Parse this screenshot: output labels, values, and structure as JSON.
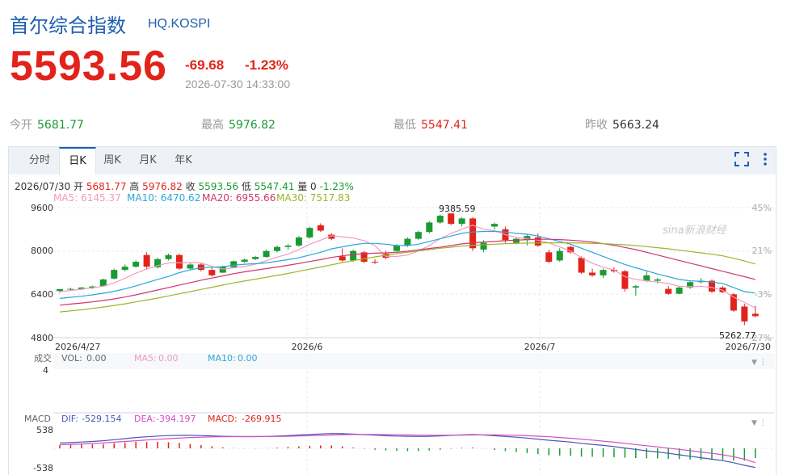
{
  "header": {
    "title": "首尔综合指数",
    "code": "HQ.KOSPI",
    "price": "5593.56",
    "change": "-69.68",
    "change_pct": "-1.23%",
    "datetime": "2026-07-30 14:33:00"
  },
  "stats": {
    "open": {
      "label": "今开",
      "value": "5681.77"
    },
    "high": {
      "label": "最高",
      "value": "5976.82"
    },
    "low": {
      "label": "最低",
      "value": "5547.41"
    },
    "prev_close": {
      "label": "昨收",
      "value": "5663.24"
    }
  },
  "tabs": [
    "分时",
    "日K",
    "周K",
    "月K",
    "年K"
  ],
  "toolbar_icons": [
    "fullscreen-icon",
    "more-vertical-icon"
  ],
  "ohlc_line": {
    "date": "2026/07/30",
    "open_label": "开",
    "open": "5681.77",
    "high_label": "高",
    "high": "5976.82",
    "close_label": "收",
    "close": "5593.56",
    "low_label": "低",
    "low": "5547.41",
    "vol_label": "量",
    "vol": "0",
    "pct": "-1.23%"
  },
  "ma_legend": [
    {
      "label": "MA5:",
      "value": "6145.37",
      "color": "#f29ac0"
    },
    {
      "label": "MA10:",
      "value": "6470.62",
      "color": "#2aa7d9"
    },
    {
      "label": "MA20:",
      "value": "6955.66",
      "color": "#d0356e"
    },
    {
      "label": "MA30:",
      "value": "7517.83",
      "color": "#9bb52b"
    }
  ],
  "volume_legend": {
    "title": "成交",
    "vol_label": "VOL:",
    "vol": "0.00",
    "ma5_label": "MA5:",
    "ma5": "0.00",
    "ma10_label": "MA10:",
    "ma10": "0.00",
    "ytick": "4"
  },
  "macd_legend": {
    "title": "MACD",
    "dif_label": "DIF:",
    "dif": "-529.154",
    "dea_label": "DEA:",
    "dea": "-394.197",
    "macd_label": "MACD:",
    "macd": "-269.915",
    "yticks": [
      "538",
      "-538"
    ]
  },
  "watermark": "sina新浪财经",
  "colors": {
    "up": "#e2231a",
    "down": "#1a9a33",
    "ma5": "#f29ac0",
    "ma10": "#2aa7d9",
    "ma20": "#d0356e",
    "ma30": "#9bb52b",
    "dif": "#4a57b5",
    "dea": "#d44fc0"
  },
  "chart_data": {
    "type": "candlestick",
    "title": "日K",
    "x_tick_labels": [
      "2026/4/27",
      "2026/6",
      "2026/7",
      "2026/7/30"
    ],
    "y_tick_labels_left": [
      "9600",
      "8000",
      "6400",
      "4800"
    ],
    "y_tick_labels_right": [
      "45%",
      "21%",
      "-3%",
      "-27%"
    ],
    "ylim": [
      4800,
      9600
    ],
    "annotations": {
      "max": "9385.59",
      "min": "5262.77"
    },
    "candles": [
      {
        "o": 6520,
        "h": 6600,
        "l": 6460,
        "c": 6590
      },
      {
        "o": 6580,
        "h": 6640,
        "l": 6540,
        "c": 6600
      },
      {
        "o": 6590,
        "h": 6670,
        "l": 6560,
        "c": 6650
      },
      {
        "o": 6640,
        "h": 6720,
        "l": 6600,
        "c": 6690
      },
      {
        "o": 6700,
        "h": 6980,
        "l": 6680,
        "c": 6950
      },
      {
        "o": 6980,
        "h": 7350,
        "l": 6950,
        "c": 7300
      },
      {
        "o": 7300,
        "h": 7500,
        "l": 7250,
        "c": 7420
      },
      {
        "o": 7420,
        "h": 7650,
        "l": 7380,
        "c": 7600
      },
      {
        "o": 7850,
        "h": 7950,
        "l": 7320,
        "c": 7420
      },
      {
        "o": 7400,
        "h": 7750,
        "l": 7350,
        "c": 7700
      },
      {
        "o": 7700,
        "h": 7900,
        "l": 7650,
        "c": 7850
      },
      {
        "o": 7850,
        "h": 7900,
        "l": 7300,
        "c": 7350
      },
      {
        "o": 7350,
        "h": 7550,
        "l": 7300,
        "c": 7500
      },
      {
        "o": 7500,
        "h": 7550,
        "l": 7250,
        "c": 7300
      },
      {
        "o": 7300,
        "h": 7380,
        "l": 7060,
        "c": 7100
      },
      {
        "o": 7200,
        "h": 7450,
        "l": 7180,
        "c": 7420
      },
      {
        "o": 7400,
        "h": 7650,
        "l": 7380,
        "c": 7620
      },
      {
        "o": 7600,
        "h": 7720,
        "l": 7560,
        "c": 7680
      },
      {
        "o": 7700,
        "h": 7820,
        "l": 7660,
        "c": 7780
      },
      {
        "o": 7780,
        "h": 8050,
        "l": 7750,
        "c": 8000
      },
      {
        "o": 8000,
        "h": 8200,
        "l": 7950,
        "c": 8150
      },
      {
        "o": 8150,
        "h": 8250,
        "l": 8050,
        "c": 8200
      },
      {
        "o": 8200,
        "h": 8550,
        "l": 8150,
        "c": 8500
      },
      {
        "o": 8500,
        "h": 8900,
        "l": 8450,
        "c": 8850
      },
      {
        "o": 8950,
        "h": 9020,
        "l": 8700,
        "c": 8750
      },
      {
        "o": 8600,
        "h": 8650,
        "l": 8400,
        "c": 8450
      },
      {
        "o": 7800,
        "h": 8100,
        "l": 7600,
        "c": 7650
      },
      {
        "o": 7650,
        "h": 8050,
        "l": 7600,
        "c": 8000
      },
      {
        "o": 7950,
        "h": 8000,
        "l": 7550,
        "c": 7600
      },
      {
        "o": 7600,
        "h": 7700,
        "l": 7520,
        "c": 7580
      },
      {
        "o": 7900,
        "h": 8000,
        "l": 7700,
        "c": 7750
      },
      {
        "o": 8000,
        "h": 8250,
        "l": 7950,
        "c": 8200
      },
      {
        "o": 8200,
        "h": 8500,
        "l": 8150,
        "c": 8450
      },
      {
        "o": 8450,
        "h": 8750,
        "l": 8400,
        "c": 8700
      },
      {
        "o": 8700,
        "h": 9100,
        "l": 8650,
        "c": 9050
      },
      {
        "o": 9050,
        "h": 9350,
        "l": 9000,
        "c": 9300
      },
      {
        "o": 9385,
        "h": 9386,
        "l": 8950,
        "c": 9000
      },
      {
        "o": 9000,
        "h": 9250,
        "l": 8900,
        "c": 9200
      },
      {
        "o": 9200,
        "h": 9250,
        "l": 8000,
        "c": 8100
      },
      {
        "o": 8050,
        "h": 8400,
        "l": 7950,
        "c": 8300
      },
      {
        "o": 8900,
        "h": 9050,
        "l": 8800,
        "c": 9000
      },
      {
        "o": 8800,
        "h": 8900,
        "l": 8300,
        "c": 8400
      },
      {
        "o": 8300,
        "h": 8500,
        "l": 8250,
        "c": 8450
      },
      {
        "o": 8400,
        "h": 8600,
        "l": 8200,
        "c": 8550
      },
      {
        "o": 8500,
        "h": 8650,
        "l": 8150,
        "c": 8200
      },
      {
        "o": 7950,
        "h": 8050,
        "l": 7550,
        "c": 7600
      },
      {
        "o": 7650,
        "h": 8100,
        "l": 7600,
        "c": 8000
      },
      {
        "o": 8150,
        "h": 8200,
        "l": 7900,
        "c": 7950
      },
      {
        "o": 7750,
        "h": 7800,
        "l": 7150,
        "c": 7200
      },
      {
        "o": 7200,
        "h": 7350,
        "l": 7050,
        "c": 7100
      },
      {
        "o": 7100,
        "h": 7350,
        "l": 7000,
        "c": 7300
      },
      {
        "o": 7300,
        "h": 7400,
        "l": 7200,
        "c": 7250
      },
      {
        "o": 7250,
        "h": 7300,
        "l": 6500,
        "c": 6600
      },
      {
        "o": 6650,
        "h": 6750,
        "l": 6350,
        "c": 6700
      },
      {
        "o": 6900,
        "h": 7250,
        "l": 6850,
        "c": 7100
      },
      {
        "o": 6900,
        "h": 7000,
        "l": 6800,
        "c": 6950
      },
      {
        "o": 6600,
        "h": 6700,
        "l": 6380,
        "c": 6420
      },
      {
        "o": 6420,
        "h": 6700,
        "l": 6400,
        "c": 6650
      },
      {
        "o": 6650,
        "h": 6900,
        "l": 6600,
        "c": 6850
      },
      {
        "o": 6850,
        "h": 7000,
        "l": 6800,
        "c": 6900
      },
      {
        "o": 6900,
        "h": 6950,
        "l": 6450,
        "c": 6500
      },
      {
        "o": 6650,
        "h": 6700,
        "l": 6450,
        "c": 6480
      },
      {
        "o": 6400,
        "h": 6450,
        "l": 5750,
        "c": 5800
      },
      {
        "o": 5950,
        "h": 6050,
        "l": 5263,
        "c": 5400
      },
      {
        "o": 5682,
        "h": 5977,
        "l": 5547,
        "c": 5594
      }
    ],
    "ma5": [
      6500,
      6540,
      6590,
      6640,
      6700,
      6820,
      6990,
      7180,
      7330,
      7460,
      7560,
      7560,
      7570,
      7560,
      7430,
      7330,
      7380,
      7420,
      7510,
      7640,
      7770,
      7890,
      8050,
      8250,
      8400,
      8560,
      8520,
      8480,
      8380,
      8200,
      7800,
      7800,
      7850,
      8000,
      8200,
      8450,
      8650,
      8800,
      8950,
      8800,
      8750,
      8600,
      8500,
      8450,
      8400,
      8300,
      8150,
      8000,
      7750,
      7550,
      7400,
      7300,
      7050,
      6950,
      6900,
      6850,
      6800,
      6700,
      6680,
      6700,
      6650,
      6550,
      6300,
      6100,
      5900
    ],
    "ma10": [
      6250,
      6290,
      6330,
      6380,
      6440,
      6510,
      6600,
      6710,
      6830,
      6950,
      7060,
      7200,
      7300,
      7380,
      7400,
      7420,
      7470,
      7510,
      7530,
      7560,
      7620,
      7680,
      7750,
      7850,
      7950,
      8080,
      8150,
      8230,
      8280,
      8280,
      8250,
      8200,
      8200,
      8250,
      8350,
      8450,
      8550,
      8650,
      8700,
      8720,
      8720,
      8700,
      8650,
      8620,
      8550,
      8450,
      8350,
      8250,
      8100,
      7950,
      7800,
      7650,
      7500,
      7380,
      7270,
      7150,
      7050,
      6950,
      6900,
      6880,
      6850,
      6800,
      6650,
      6500,
      6450
    ],
    "ma20": [
      6000,
      6040,
      6080,
      6120,
      6170,
      6230,
      6300,
      6380,
      6470,
      6560,
      6650,
      6740,
      6830,
      6920,
      7000,
      7080,
      7160,
      7230,
      7290,
      7350,
      7410,
      7470,
      7540,
      7610,
      7680,
      7760,
      7820,
      7870,
      7900,
      7920,
      7930,
      7950,
      7990,
      8040,
      8090,
      8140,
      8200,
      8260,
      8300,
      8330,
      8350,
      8380,
      8400,
      8420,
      8430,
      8430,
      8420,
      8400,
      8370,
      8330,
      8270,
      8210,
      8130,
      8050,
      7950,
      7850,
      7750,
      7650,
      7550,
      7450,
      7350,
      7250,
      7150,
      7050,
      6950
    ],
    "ma30": [
      5750,
      5790,
      5830,
      5880,
      5930,
      5990,
      6050,
      6120,
      6190,
      6260,
      6340,
      6420,
      6500,
      6580,
      6660,
      6740,
      6820,
      6890,
      6960,
      7030,
      7100,
      7170,
      7250,
      7330,
      7410,
      7490,
      7570,
      7640,
      7710,
      7780,
      7840,
      7900,
      7950,
      8000,
      8050,
      8100,
      8140,
      8180,
      8210,
      8230,
      8250,
      8270,
      8280,
      8290,
      8300,
      8300,
      8300,
      8300,
      8290,
      8280,
      8270,
      8250,
      8230,
      8200,
      8160,
      8120,
      8080,
      8030,
      7980,
      7930,
      7880,
      7820,
      7730,
      7630,
      7520
    ],
    "macd": {
      "ylim": [
        -538,
        538
      ],
      "dif": [
        150,
        160,
        175,
        190,
        210,
        240,
        270,
        300,
        320,
        340,
        355,
        360,
        360,
        355,
        345,
        335,
        330,
        325,
        325,
        330,
        340,
        355,
        370,
        385,
        400,
        410,
        405,
        395,
        380,
        365,
        350,
        340,
        335,
        330,
        335,
        345,
        360,
        375,
        385,
        370,
        350,
        330,
        310,
        285,
        255,
        225,
        200,
        175,
        140,
        110,
        80,
        50,
        10,
        -30,
        -70,
        -100,
        -140,
        -180,
        -220,
        -260,
        -300,
        -340,
        -400,
        -470,
        -529
      ],
      "dea": [
        100,
        110,
        120,
        135,
        150,
        170,
        190,
        210,
        230,
        250,
        270,
        285,
        300,
        310,
        318,
        322,
        325,
        326,
        327,
        328,
        330,
        335,
        342,
        350,
        360,
        370,
        378,
        383,
        385,
        384,
        380,
        376,
        372,
        368,
        365,
        364,
        365,
        368,
        372,
        373,
        372,
        368,
        360,
        350,
        337,
        320,
        300,
        280,
        255,
        228,
        200,
        172,
        140,
        106,
        72,
        40,
        4,
        -30,
        -65,
        -100,
        -140,
        -180,
        -230,
        -300,
        -394
      ],
      "hist": [
        90,
        100,
        110,
        110,
        120,
        140,
        160,
        180,
        180,
        180,
        170,
        150,
        120,
        90,
        60,
        30,
        10,
        -5,
        -5,
        5,
        20,
        40,
        55,
        70,
        80,
        80,
        55,
        25,
        -10,
        -40,
        -60,
        -70,
        -75,
        -75,
        -60,
        -40,
        -10,
        15,
        25,
        -5,
        -45,
        -75,
        -100,
        -130,
        -160,
        -190,
        -200,
        -210,
        -230,
        -235,
        -240,
        -245,
        -260,
        -270,
        -280,
        -280,
        -290,
        -300,
        -310,
        -320,
        -320,
        -320,
        -340,
        -340,
        -270
      ]
    }
  }
}
